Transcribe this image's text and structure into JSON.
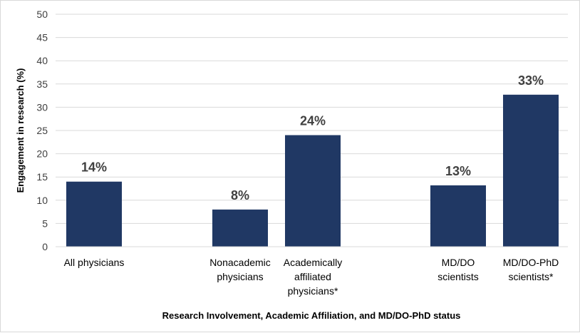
{
  "chart_data": {
    "type": "bar",
    "title": "",
    "xlabel": "Research Involvement, Academic Affiliation, and MD/DO-PhD status",
    "ylabel": "Engagement in research (%)",
    "ylim": [
      0,
      50
    ],
    "yticks": [
      0,
      5,
      10,
      15,
      20,
      25,
      30,
      35,
      40,
      45,
      50
    ],
    "grid": true,
    "legend": "none",
    "bar_color": "#203864",
    "categories": [
      [
        "All physicians"
      ],
      [
        "Nonacademic",
        "physicians"
      ],
      [
        "Academically",
        "affiliated",
        "physicians*"
      ],
      [
        "MD/DO",
        "scientists"
      ],
      [
        "MD/DO-PhD",
        "scientists*"
      ]
    ],
    "values": [
      14,
      8,
      24,
      13.2,
      32.7
    ],
    "data_labels": [
      "14%",
      "8%",
      "24%",
      "13%",
      "33%"
    ]
  }
}
